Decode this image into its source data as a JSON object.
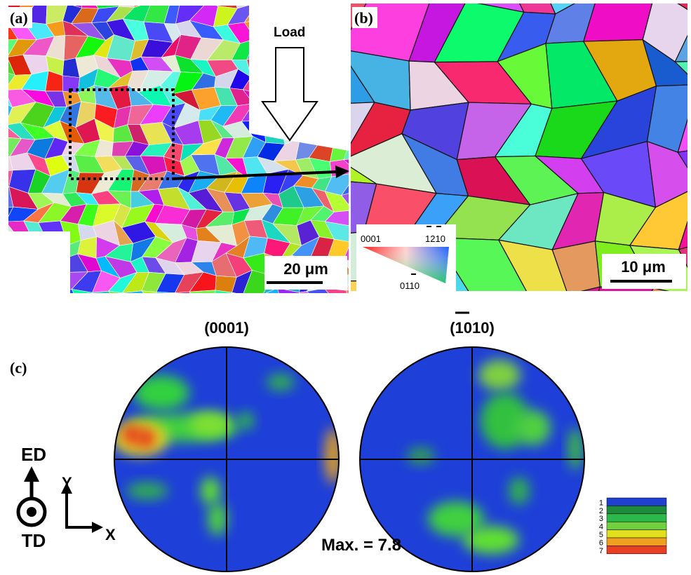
{
  "panel_a": {
    "label": "(a)",
    "load_label": "Load",
    "scale_bar": "20 μm"
  },
  "panel_b": {
    "label": "(b)",
    "scale_bar": "10 μm",
    "ipf_key": {
      "corner_0001": "0001",
      "corner_1210": "1210",
      "corner_0110": "0110"
    }
  },
  "panel_c": {
    "label": "(c)",
    "pole_figures": [
      {
        "title": "(0001)"
      },
      {
        "title": "(1010)"
      }
    ],
    "max_label": "Max. = 7.8",
    "axes": {
      "ed": "ED",
      "td": "TD",
      "y": "Y",
      "x": "X"
    },
    "color_scale": {
      "levels": [
        1,
        2,
        3,
        4,
        5,
        6,
        7
      ]
    }
  }
}
